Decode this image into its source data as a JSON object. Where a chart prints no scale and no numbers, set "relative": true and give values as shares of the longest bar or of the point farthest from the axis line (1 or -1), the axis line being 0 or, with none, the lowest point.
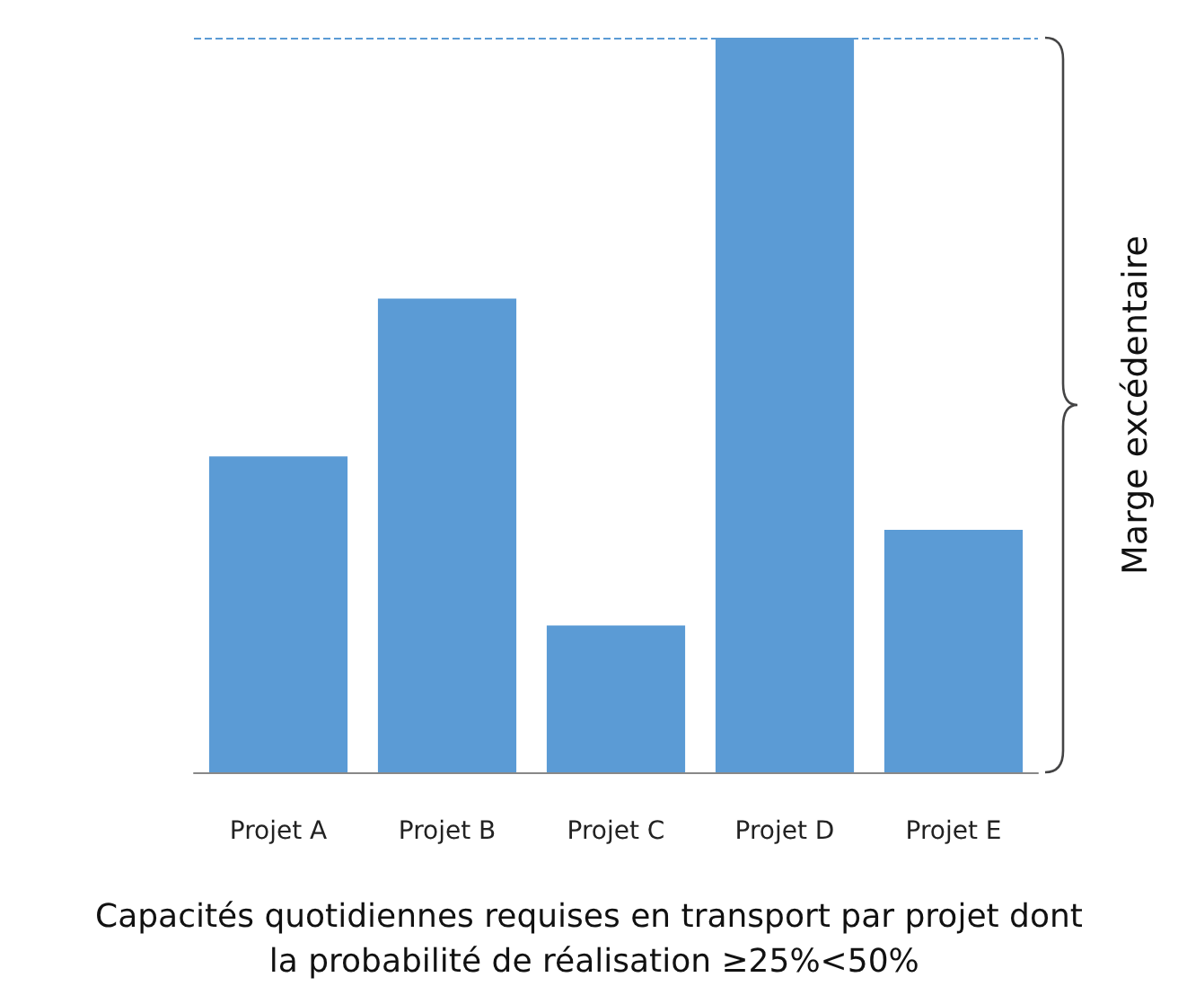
{
  "chart_data": {
    "type": "bar",
    "relative": true,
    "categories": [
      "Projet A",
      "Projet B",
      "Projet C",
      "Projet D",
      "Projet E"
    ],
    "values": [
      0.43,
      0.645,
      0.2,
      1,
      0.33
    ],
    "color": "#5b9bd5",
    "xlabel": "Capacités quotidiennes requises en transport par projet dont la probabilité de réalisation ≥25%<50%",
    "annotations": [
      "Marge excédentaire"
    ],
    "ref_lines": [
      {
        "axis": "y",
        "value": 1,
        "color": "#5b9bd5",
        "line_style": "dashed"
      }
    ],
    "grid": false
  }
}
